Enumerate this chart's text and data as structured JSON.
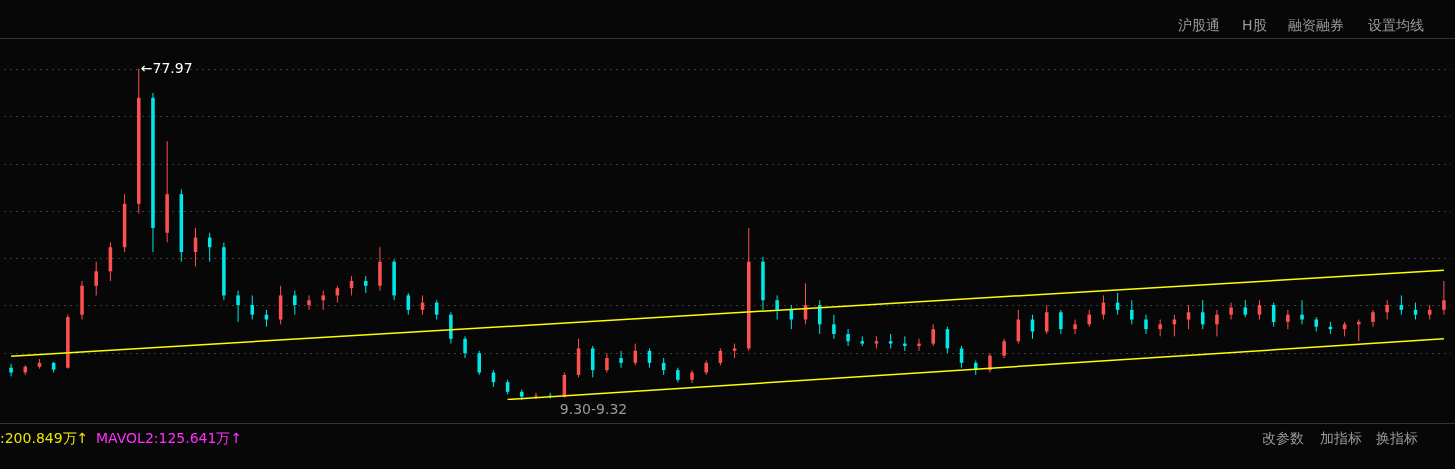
{
  "chart_data": {
    "type": "candlestick",
    "categories": [
      null,
      null,
      null,
      null,
      null,
      null,
      null,
      null,
      null,
      null,
      null,
      null,
      null,
      null,
      null,
      null,
      null,
      null,
      null,
      null,
      null,
      null,
      null,
      null,
      null,
      null,
      null,
      null,
      null,
      null,
      null,
      null,
      null,
      null,
      null,
      null,
      null,
      null,
      null,
      null,
      null,
      null,
      null,
      null,
      null,
      null,
      null,
      null,
      null,
      null,
      null,
      null,
      null,
      null,
      null,
      null,
      null,
      null,
      null,
      null,
      null,
      null,
      null,
      null,
      null,
      null,
      null,
      null,
      null,
      null,
      null,
      null,
      null,
      null,
      null,
      null,
      null,
      null,
      null,
      null,
      null,
      null,
      null,
      null,
      null,
      null,
      null,
      null,
      null,
      null,
      null,
      null,
      null,
      null,
      null,
      null,
      null,
      null,
      null,
      null,
      null,
      null
    ],
    "ohlc": [
      [
        16,
        16.8,
        14.2,
        15
      ],
      [
        15,
        16.5,
        14.5,
        16.2
      ],
      [
        16.2,
        17.8,
        15.8,
        17
      ],
      [
        17,
        17.2,
        15,
        15.6
      ],
      [
        16,
        27,
        15.8,
        26.5
      ],
      [
        27,
        34,
        26,
        33
      ],
      [
        33,
        38,
        31,
        36
      ],
      [
        36,
        42,
        34,
        41
      ],
      [
        41,
        52,
        40,
        50
      ],
      [
        50,
        77.97,
        48,
        72
      ],
      [
        72,
        73,
        40,
        45
      ],
      [
        44,
        63,
        42,
        52
      ],
      [
        52,
        53,
        38,
        40
      ],
      [
        40,
        45,
        37,
        43
      ],
      [
        43,
        44,
        38,
        41
      ],
      [
        41,
        42,
        30,
        31
      ],
      [
        31,
        32,
        25.5,
        29
      ],
      [
        29,
        31,
        26,
        27
      ],
      [
        27,
        28,
        24.5,
        26
      ],
      [
        26,
        33,
        25,
        31
      ],
      [
        31,
        32,
        27,
        29
      ],
      [
        29,
        31,
        28,
        30
      ],
      [
        30,
        32,
        28,
        31
      ],
      [
        31,
        33,
        29.5,
        32.5
      ],
      [
        32.5,
        35,
        31,
        34
      ],
      [
        34,
        35,
        31.5,
        33
      ],
      [
        33,
        41,
        32,
        38
      ],
      [
        38,
        38.5,
        30,
        31
      ],
      [
        31,
        31.5,
        27,
        28
      ],
      [
        28,
        31,
        27,
        29.5
      ],
      [
        29.5,
        30,
        26,
        27
      ],
      [
        27,
        27.5,
        21,
        22
      ],
      [
        22,
        22.5,
        18,
        19
      ],
      [
        19,
        19.5,
        14.5,
        15
      ],
      [
        15,
        15.5,
        12,
        13
      ],
      [
        13,
        13.5,
        10.5,
        11
      ],
      [
        11,
        11.5,
        9.3,
        10
      ],
      [
        10,
        10.8,
        9.5,
        10.2
      ],
      [
        10.2,
        10.8,
        9.6,
        10
      ],
      [
        10,
        15,
        9.8,
        14.5
      ],
      [
        14.5,
        22,
        14,
        20
      ],
      [
        20,
        20.5,
        14,
        15.5
      ],
      [
        15.5,
        19,
        15,
        18
      ],
      [
        18,
        19.5,
        16,
        17
      ],
      [
        17,
        21,
        16.5,
        19.5
      ],
      [
        19.5,
        20,
        16,
        17
      ],
      [
        17,
        18,
        14.5,
        15.5
      ],
      [
        15.5,
        16,
        13,
        13.5
      ],
      [
        13.5,
        15.5,
        12.8,
        15
      ],
      [
        15,
        17.5,
        14.5,
        17
      ],
      [
        17,
        20,
        16.5,
        19.5
      ],
      [
        19.5,
        21,
        18,
        20
      ],
      [
        20,
        45,
        19.5,
        38
      ],
      [
        38,
        39,
        28,
        30
      ],
      [
        30,
        31,
        26,
        28
      ],
      [
        28,
        29,
        24,
        26
      ],
      [
        26,
        33.5,
        25,
        29
      ],
      [
        29,
        30,
        23,
        25
      ],
      [
        25,
        27,
        22,
        23
      ],
      [
        23,
        24,
        20.5,
        21.5
      ],
      [
        21.5,
        22.5,
        20.5,
        21
      ],
      [
        21,
        22.5,
        20,
        21.5
      ],
      [
        21.5,
        23,
        20,
        21
      ],
      [
        21,
        22.5,
        19.5,
        20.5
      ],
      [
        20.5,
        22,
        19.5,
        21
      ],
      [
        21,
        25,
        20.5,
        24
      ],
      [
        24,
        24.5,
        19,
        20
      ],
      [
        20,
        20.5,
        16,
        17
      ],
      [
        17,
        17.5,
        14.5,
        15.5
      ],
      [
        15.5,
        19,
        15,
        18.5
      ],
      [
        18.5,
        22,
        18,
        21.5
      ],
      [
        21.5,
        28,
        21,
        26
      ],
      [
        26,
        27,
        22,
        23.5
      ],
      [
        23.5,
        29,
        23,
        27.5
      ],
      [
        27.5,
        28,
        23,
        24
      ],
      [
        24,
        26,
        23,
        25
      ],
      [
        25,
        28,
        24.5,
        27
      ],
      [
        27,
        31,
        26,
        29.5
      ],
      [
        29.5,
        31.5,
        27,
        28
      ],
      [
        28,
        30,
        25,
        26
      ],
      [
        26,
        27,
        23,
        24
      ],
      [
        24,
        26,
        22.5,
        25
      ],
      [
        25,
        27,
        22.5,
        26
      ],
      [
        26,
        29,
        24,
        27.5
      ],
      [
        27.5,
        30,
        24,
        25
      ],
      [
        25,
        28,
        22.5,
        27
      ],
      [
        27,
        29.5,
        26,
        28.5
      ],
      [
        28.5,
        30,
        26.5,
        27
      ],
      [
        27,
        30,
        26,
        29
      ],
      [
        29,
        29.5,
        24.5,
        25.5
      ],
      [
        25.5,
        28,
        24,
        27
      ],
      [
        27,
        30,
        25,
        26
      ],
      [
        26,
        26.5,
        23.5,
        24.5
      ],
      [
        24.5,
        25.5,
        23,
        24
      ],
      [
        24,
        25.5,
        22.5,
        25
      ],
      [
        25,
        26,
        21.5,
        25.5
      ],
      [
        25.5,
        28,
        24.5,
        27.5
      ],
      [
        27.5,
        30,
        26,
        29
      ],
      [
        29,
        31,
        27,
        28
      ],
      [
        28,
        29.5,
        26,
        27
      ],
      [
        27,
        29,
        26,
        28
      ],
      [
        28,
        34,
        27,
        30
      ]
    ],
    "series": [
      {
        "type": "line",
        "color": "#ffff00",
        "values": [
          18.4,
          null,
          null,
          null,
          null,
          null,
          null,
          null,
          null,
          null,
          null,
          null,
          null,
          null,
          null,
          null,
          null,
          null,
          null,
          null,
          null,
          null,
          null,
          null,
          null,
          null,
          null,
          null,
          null,
          null,
          null,
          null,
          null,
          null,
          null,
          null,
          null,
          null,
          null,
          null,
          null,
          null,
          null,
          null,
          null,
          null,
          null,
          null,
          null,
          null,
          null,
          null,
          null,
          null,
          null,
          null,
          null,
          null,
          null,
          null,
          null,
          null,
          null,
          null,
          null,
          null,
          null,
          null,
          null,
          null,
          null,
          null,
          null,
          null,
          null,
          null,
          null,
          null,
          null,
          null,
          null,
          null,
          null,
          null,
          null,
          null,
          null,
          null,
          null,
          null,
          null,
          null,
          null,
          null,
          null,
          null,
          null,
          null,
          null,
          null,
          null,
          36.2
        ]
      },
      {
        "type": "line",
        "color": "#ffff00",
        "values": [
          null,
          null,
          null,
          null,
          null,
          null,
          null,
          null,
          null,
          null,
          null,
          null,
          null,
          null,
          null,
          null,
          null,
          null,
          null,
          null,
          null,
          null,
          null,
          null,
          null,
          null,
          null,
          null,
          null,
          null,
          null,
          null,
          null,
          null,
          null,
          9.4,
          null,
          null,
          null,
          null,
          null,
          null,
          null,
          null,
          null,
          null,
          null,
          null,
          null,
          null,
          null,
          null,
          null,
          null,
          null,
          null,
          null,
          null,
          null,
          null,
          null,
          null,
          null,
          null,
          null,
          null,
          null,
          null,
          null,
          null,
          null,
          null,
          null,
          null,
          null,
          null,
          null,
          null,
          null,
          null,
          null,
          null,
          null,
          null,
          null,
          null,
          null,
          null,
          null,
          null,
          null,
          null,
          null,
          null,
          null,
          null,
          null,
          null,
          null,
          null,
          null,
          22
        ]
      }
    ],
    "annotations": [
      "←77.97",
      "9.30-9.32",
      "沪股通",
      "H股",
      "融资融券",
      "设置均线",
      "改参数",
      "加指标",
      "换指标",
      ":200.849万↑",
      "MAVOL2:125.641万↑"
    ],
    "grid": "y",
    "legend": false,
    "tick_labels": false
  }
}
